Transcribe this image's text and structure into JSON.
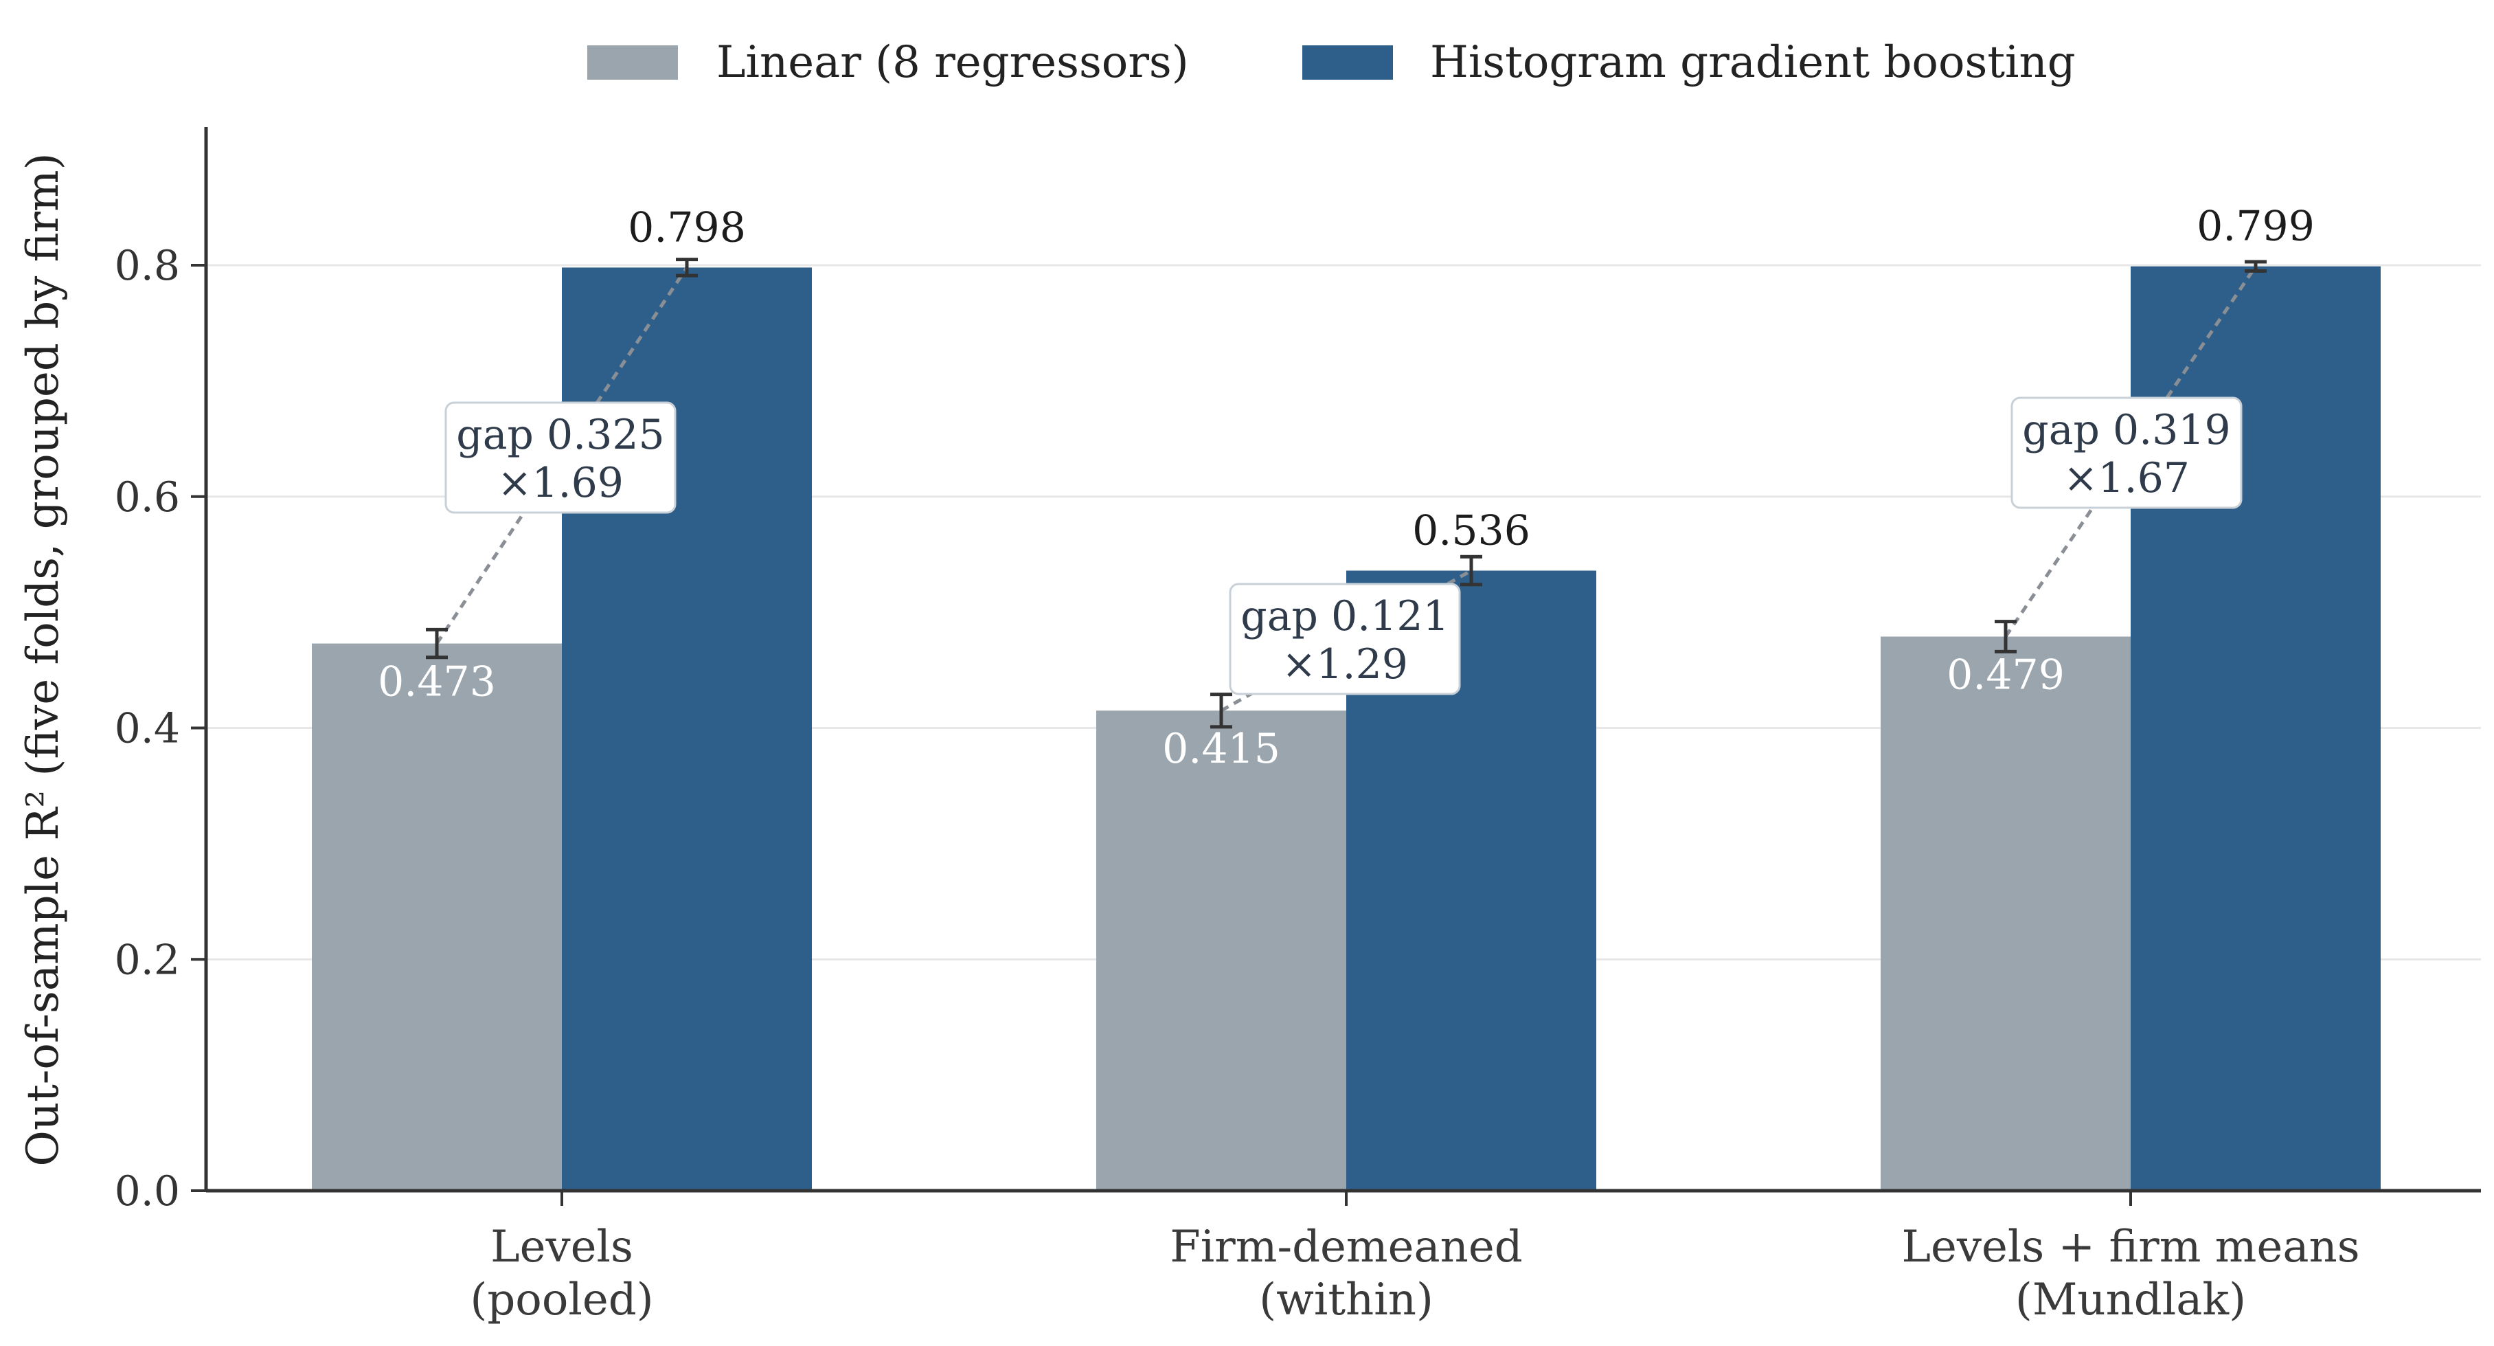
{
  "chart_data": {
    "type": "bar",
    "categories": [
      [
        "Levels",
        "(pooled)"
      ],
      [
        "Firm-demeaned",
        "(within)"
      ],
      [
        "Levels + firm means",
        "(Mundlak)"
      ]
    ],
    "series": [
      {
        "name": "Linear (8 regressors)",
        "color": "#9aa5ae",
        "values": [
          0.473,
          0.415,
          0.479
        ],
        "errors": [
          0.012,
          0.014,
          0.013
        ],
        "labels": [
          "0.473",
          "0.415",
          "0.479"
        ]
      },
      {
        "name": "Histogram gradient boosting",
        "color": "#2e5f8a",
        "values": [
          0.798,
          0.536,
          0.799
        ],
        "errors": [
          0.007,
          0.012,
          0.004
        ],
        "labels": [
          "0.798",
          "0.536",
          "0.799"
        ]
      }
    ],
    "annotations": [
      {
        "gap": "gap 0.325",
        "ratio": "×1.69"
      },
      {
        "gap": "gap 0.121",
        "ratio": "×1.29"
      },
      {
        "gap": "gap 0.319",
        "ratio": "×1.67"
      }
    ],
    "ylabel": "Out-of-sample R² (five folds, grouped by firm)",
    "xlabel": "",
    "ylim": [
      0,
      0.92
    ],
    "yticks": [
      "0.0",
      "0.2",
      "0.4",
      "0.6",
      "0.8"
    ],
    "grid": "horizontal",
    "legend": "top-center"
  }
}
